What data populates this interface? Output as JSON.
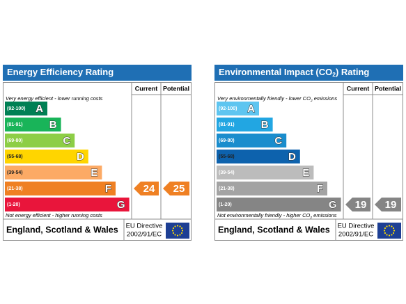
{
  "panels": [
    {
      "title": [
        "Energy Efficiency Rating"
      ],
      "col_current": "Current",
      "col_potential": "Potential",
      "top_note": [
        "Very energy efficient - lower running costs"
      ],
      "bands": [
        {
          "range": "(92-100)",
          "letter": "A",
          "color": "#008054"
        },
        {
          "range": "(81-91)",
          "letter": "B",
          "color": "#19b459"
        },
        {
          "range": "(69-80)",
          "letter": "C",
          "color": "#8dce46"
        },
        {
          "range": "(55-68)",
          "letter": "D",
          "color": "#ffd500"
        },
        {
          "range": "(39-54)",
          "letter": "E",
          "color": "#fcaa65"
        },
        {
          "range": "(21-38)",
          "letter": "F",
          "color": "#ef8023"
        },
        {
          "range": "(1-20)",
          "letter": "G",
          "color": "#e9153b"
        }
      ],
      "bottom_note": [
        "Not energy efficient - higher running costs"
      ],
      "footer": "England, Scotland & Wales",
      "directive": [
        "EU Directive",
        "2002/91/EC"
      ],
      "current": 24,
      "potential": 25
    },
    {
      "title": [
        "Environmental Impact (CO",
        "2",
        ") Rating"
      ],
      "col_current": "Current",
      "col_potential": "Potential",
      "top_note": [
        "Very environmentally friendly - lower CO",
        "2",
        " emissions"
      ],
      "bands": [
        {
          "range": "(92-100)",
          "letter": "A",
          "color": "#5ec5f0"
        },
        {
          "range": "(81-91)",
          "letter": "B",
          "color": "#22a6e2"
        },
        {
          "range": "(69-80)",
          "letter": "C",
          "color": "#1a8dcd"
        },
        {
          "range": "(55-68)",
          "letter": "D",
          "color": "#0d62ad"
        },
        {
          "range": "(39-54)",
          "letter": "E",
          "color": "#bcbcbc"
        },
        {
          "range": "(21-38)",
          "letter": "F",
          "color": "#a3a3a3"
        },
        {
          "range": "(1-20)",
          "letter": "G",
          "color": "#858585"
        }
      ],
      "bottom_note": [
        "Not environmentally friendly - higher CO",
        "2",
        " emissions"
      ],
      "footer": "England, Scotland & Wales",
      "directive": [
        "EU Directive",
        "2002/91/EC"
      ],
      "current": 19,
      "potential": 19
    }
  ]
}
